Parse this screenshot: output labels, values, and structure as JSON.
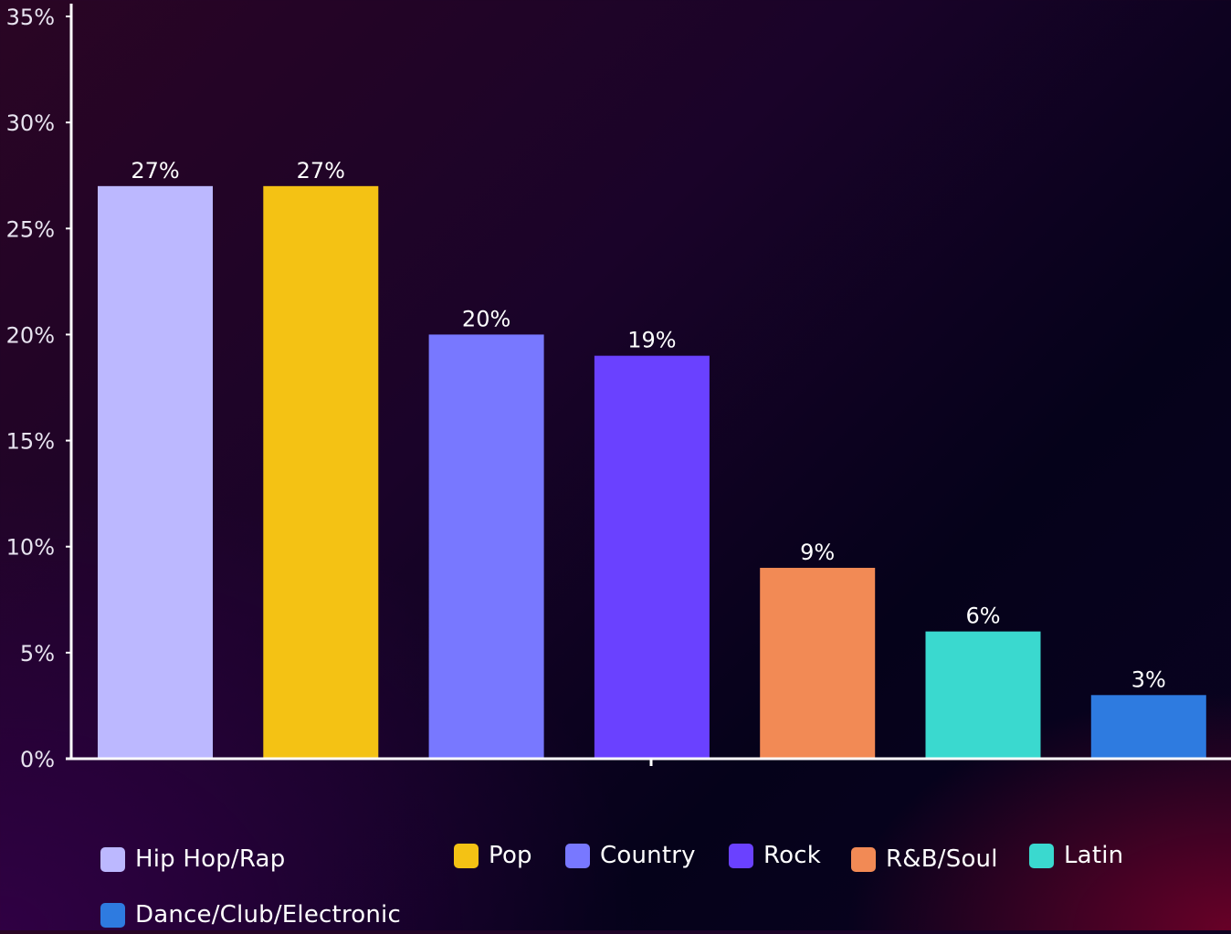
{
  "chart_data": {
    "type": "bar",
    "categories": [
      "Hip Hop/Rap",
      "Pop",
      "Country",
      "Rock",
      "R&B/Soul",
      "Latin",
      "Dance/Club/Electronic"
    ],
    "values": [
      27,
      27,
      20,
      19,
      9,
      6,
      3
    ],
    "data_labels": [
      "27%",
      "27%",
      "20%",
      "19%",
      "9%",
      "6%",
      "3%"
    ],
    "colors": [
      "#bcb8ff",
      "#f4c214",
      "#7878ff",
      "#6a41ff",
      "#f28a55",
      "#3ad9cf",
      "#2e7be0"
    ],
    "ylim": [
      0,
      35
    ],
    "yticks": [
      0,
      5,
      10,
      15,
      20,
      25,
      30,
      35
    ],
    "ytick_labels": [
      "0%",
      "5%",
      "10%",
      "15%",
      "20%",
      "25%",
      "30%",
      "35%"
    ],
    "title": "",
    "xlabel": "",
    "ylabel": "",
    "grid": false,
    "legend_position": "bottom"
  },
  "legend": {
    "items": [
      {
        "label": "Hip Hop/Rap",
        "color": "#bcb8ff"
      },
      {
        "label": "Pop",
        "color": "#f4c214"
      },
      {
        "label": "Country",
        "color": "#7878ff"
      },
      {
        "label": "Rock",
        "color": "#6a41ff"
      },
      {
        "label": "R&B/Soul",
        "color": "#f28a55"
      },
      {
        "label": "Latin",
        "color": "#3ad9cf"
      },
      {
        "label": "Dance/Club/Electronic",
        "color": "#2e7be0"
      }
    ]
  }
}
